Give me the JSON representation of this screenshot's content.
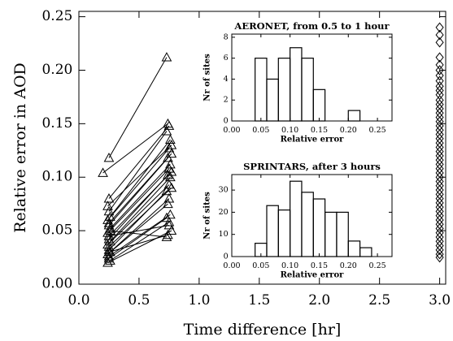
{
  "chart_data": [
    {
      "type": "segments",
      "xlabel": "Time difference [hr]",
      "ylabel": "Relative error in AOD",
      "xlim": [
        0,
        3.05
      ],
      "ylim": [
        0,
        0.255
      ],
      "xticks": [
        {
          "value": 0,
          "label": "0.0"
        },
        {
          "value": 0.5,
          "label": "0.5"
        },
        {
          "value": 1,
          "label": "1.0"
        },
        {
          "value": 1.5,
          "label": "1.5"
        },
        {
          "value": 2,
          "label": "2.0"
        },
        {
          "value": 2.5,
          "label": "2.5"
        },
        {
          "value": 3,
          "label": "3.0"
        }
      ],
      "yticks": [
        {
          "value": 0,
          "label": "0.00"
        },
        {
          "value": 0.05,
          "label": "0.05"
        },
        {
          "value": 0.1,
          "label": "0.10"
        },
        {
          "value": 0.15,
          "label": "0.15"
        },
        {
          "value": 0.2,
          "label": "0.20"
        },
        {
          "value": 0.25,
          "label": "0.25"
        }
      ],
      "color": "#000000",
      "marker": "triangle",
      "segments": [
        {
          "x": [
            0.25,
            0.73
          ],
          "values": [
            0.118,
            0.212
          ]
        },
        {
          "x": [
            0.2,
            0.74
          ],
          "values": [
            0.104,
            0.15
          ]
        },
        {
          "x": [
            0.25,
            0.75
          ],
          "values": [
            0.08,
            0.148
          ]
        },
        {
          "x": [
            0.24,
            0.77
          ],
          "values": [
            0.073,
            0.13
          ]
        },
        {
          "x": [
            0.25,
            0.73
          ],
          "values": [
            0.068,
            0.143
          ]
        },
        {
          "x": [
            0.26,
            0.76
          ],
          "values": [
            0.063,
            0.135
          ]
        },
        {
          "x": [
            0.24,
            0.75
          ],
          "values": [
            0.06,
            0.127
          ]
        },
        {
          "x": [
            0.25,
            0.77
          ],
          "values": [
            0.057,
            0.122
          ]
        },
        {
          "x": [
            0.25,
            0.74
          ],
          "values": [
            0.055,
            0.118
          ]
        },
        {
          "x": [
            0.26,
            0.76
          ],
          "values": [
            0.052,
            0.112
          ]
        },
        {
          "x": [
            0.24,
            0.75
          ],
          "values": [
            0.048,
            0.108
          ]
        },
        {
          "x": [
            0.25,
            0.77
          ],
          "values": [
            0.045,
            0.105
          ]
        },
        {
          "x": [
            0.25,
            0.74
          ],
          "values": [
            0.042,
            0.102
          ]
        },
        {
          "x": [
            0.26,
            0.76
          ],
          "values": [
            0.04,
            0.1
          ]
        },
        {
          "x": [
            0.24,
            0.75
          ],
          "values": [
            0.037,
            0.093
          ]
        },
        {
          "x": [
            0.25,
            0.77
          ],
          "values": [
            0.035,
            0.09
          ]
        },
        {
          "x": [
            0.25,
            0.73
          ],
          "values": [
            0.032,
            0.087
          ]
        },
        {
          "x": [
            0.26,
            0.75
          ],
          "values": [
            0.03,
            0.08
          ]
        },
        {
          "x": [
            0.24,
            0.74
          ],
          "values": [
            0.028,
            0.075
          ]
        },
        {
          "x": [
            0.25,
            0.76
          ],
          "values": [
            0.026,
            0.065
          ]
        },
        {
          "x": [
            0.25,
            0.73
          ],
          "values": [
            0.024,
            0.062
          ]
        },
        {
          "x": [
            0.26,
            0.75
          ],
          "values": [
            0.022,
            0.058
          ]
        },
        {
          "x": [
            0.24,
            0.77
          ],
          "values": [
            0.02,
            0.05
          ]
        },
        {
          "x": [
            0.25,
            0.74
          ],
          "values": [
            0.03,
            0.046
          ]
        },
        {
          "x": [
            0.26,
            0.73
          ],
          "values": [
            0.05,
            0.044
          ]
        },
        {
          "x": [
            0.25,
            0.75
          ],
          "values": [
            0.045,
            0.055
          ]
        }
      ],
      "points": {
        "marker": "diamond",
        "x": [
          3,
          3,
          3,
          3,
          3,
          3,
          3,
          3,
          3,
          3,
          3,
          3,
          3,
          3,
          3,
          3,
          3,
          3,
          3,
          3,
          3,
          3,
          3,
          3,
          3,
          3,
          3,
          3,
          3,
          3,
          3,
          3,
          3,
          3,
          3,
          3,
          3,
          3,
          3,
          3,
          3,
          3,
          3,
          3,
          3,
          3,
          3,
          3,
          3
        ],
        "values": [
          0.24,
          0.233,
          0.226,
          0.212,
          0.205,
          0.2,
          0.195,
          0.19,
          0.185,
          0.181,
          0.177,
          0.172,
          0.168,
          0.164,
          0.16,
          0.156,
          0.152,
          0.148,
          0.144,
          0.14,
          0.136,
          0.132,
          0.128,
          0.124,
          0.12,
          0.116,
          0.112,
          0.108,
          0.104,
          0.1,
          0.096,
          0.092,
          0.088,
          0.084,
          0.08,
          0.076,
          0.072,
          0.068,
          0.064,
          0.06,
          0.056,
          0.052,
          0.048,
          0.044,
          0.04,
          0.036,
          0.032,
          0.028,
          0.025
        ]
      }
    },
    {
      "type": "histogram",
      "title": "AERONET, from 0.5 to 1 hour",
      "xlabel": "Relative error",
      "ylabel": "Nr of sites",
      "xlim": [
        0,
        0.275
      ],
      "ylim": [
        0,
        8.3
      ],
      "xticks": [
        {
          "value": 0,
          "label": "0.00"
        },
        {
          "value": 0.05,
          "label": "0.05"
        },
        {
          "value": 0.1,
          "label": "0.10"
        },
        {
          "value": 0.15,
          "label": "0.15"
        },
        {
          "value": 0.2,
          "label": "0.20"
        },
        {
          "value": 0.25,
          "label": "0.25"
        }
      ],
      "yticks": [
        0,
        2,
        4,
        6,
        8
      ],
      "bins": [
        0.04,
        0.06,
        0.08,
        0.1,
        0.12,
        0.14,
        0.16,
        0.18,
        0.2,
        0.22
      ],
      "values": [
        6,
        4,
        6,
        7,
        6,
        3,
        0,
        0,
        1
      ],
      "color": "#000000"
    },
    {
      "type": "histogram",
      "title": "SPRINTARS, after 3 hours",
      "xlabel": "Relative error",
      "ylabel": "Nr of sites",
      "xlim": [
        0,
        0.275
      ],
      "ylim": [
        0,
        37
      ],
      "xticks": [
        {
          "value": 0,
          "label": "0.00"
        },
        {
          "value": 0.05,
          "label": "0.05"
        },
        {
          "value": 0.1,
          "label": "0.10"
        },
        {
          "value": 0.15,
          "label": "0.15"
        },
        {
          "value": 0.2,
          "label": "0.20"
        },
        {
          "value": 0.25,
          "label": "0.25"
        }
      ],
      "yticks": [
        0,
        10,
        20,
        30
      ],
      "bins": [
        0.04,
        0.06,
        0.08,
        0.1,
        0.12,
        0.14,
        0.16,
        0.18,
        0.2,
        0.22,
        0.24
      ],
      "values": [
        6,
        23,
        21,
        34,
        29,
        26,
        20,
        20,
        7,
        4
      ],
      "color": "#000000"
    }
  ]
}
